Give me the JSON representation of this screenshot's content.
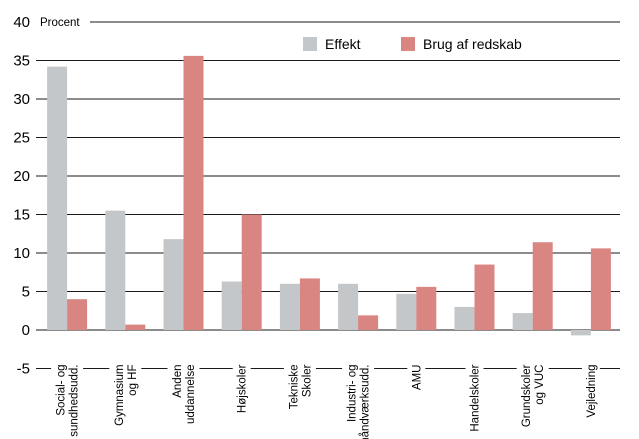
{
  "chart_data": {
    "type": "bar",
    "ylabel": "Procent",
    "ylim": [
      -5,
      40
    ],
    "yticks": [
      -5,
      0,
      5,
      10,
      15,
      20,
      25,
      30,
      35,
      40
    ],
    "grid": true,
    "legend_position": "top-right",
    "categories": [
      [
        "Social- og",
        "sundhedsudd."
      ],
      [
        "Gymnasium",
        "og HF"
      ],
      [
        "Anden",
        "uddannelse"
      ],
      [
        "Højskoler"
      ],
      [
        "Tekniske",
        "Skoler"
      ],
      [
        "Industri- og",
        "håndværksudd."
      ],
      [
        "AMU"
      ],
      [
        "Handelskoler"
      ],
      [
        "Grundskoler",
        "og VUC"
      ],
      [
        "Vejledning"
      ]
    ],
    "series": [
      {
        "name": "Effekt",
        "color": "#c4c7c9",
        "values": [
          34.2,
          15.5,
          11.8,
          6.3,
          6.0,
          6.0,
          4.7,
          3.0,
          2.2,
          -0.7
        ]
      },
      {
        "name": "Brug af redskab",
        "color": "#d98683",
        "values": [
          4.0,
          0.7,
          35.6,
          15.0,
          6.7,
          1.9,
          5.6,
          8.5,
          11.4,
          10.6
        ]
      }
    ]
  }
}
